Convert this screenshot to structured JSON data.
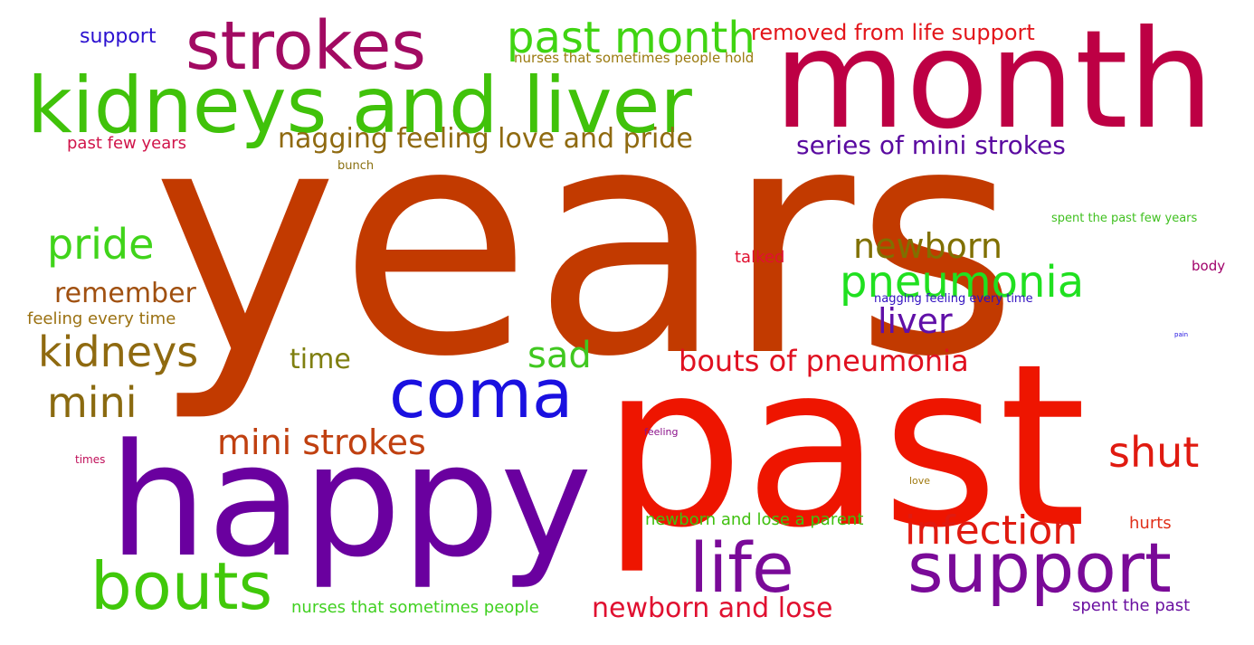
{
  "words": {
    "years": {
      "text": "years",
      "color": "#c23a00"
    },
    "month": {
      "text": "month",
      "color": "#bd0044"
    },
    "happy": {
      "text": "happy",
      "color": "#6a009f"
    },
    "past": {
      "text": "past",
      "color": "#ee1500"
    },
    "kidneys_and_liver": {
      "text": "kidneys and liver",
      "color": "#40c20a"
    },
    "strokes": {
      "text": "strokes",
      "color": "#a20a62"
    },
    "past_month": {
      "text": "past month",
      "color": "#40d412"
    },
    "removed_from_life_support": {
      "text": "removed from life support",
      "color": "#e3161b"
    },
    "support": {
      "text": "support",
      "color": "#2b10d0"
    },
    "nurses_that_sometimes_people_hold": {
      "text": "nurses that sometimes people hold",
      "color": "#9a7a10"
    },
    "past_few_years": {
      "text": "past few years",
      "color": "#d0144a"
    },
    "nagging_feeling_love_and_pride": {
      "text": "nagging feeling love and pride",
      "color": "#8f6a10"
    },
    "series_of_mini_strokes": {
      "text": "series of mini strokes",
      "color": "#5a0aa0"
    },
    "bunch": {
      "text": "bunch",
      "color": "#8a7010"
    },
    "spent_the_past_few_years": {
      "text": "spent the past few years",
      "color": "#40c020"
    },
    "pride": {
      "text": "pride",
      "color": "#40d41a"
    },
    "newborn": {
      "text": "newborn",
      "color": "#807000"
    },
    "talked": {
      "text": "talked",
      "color": "#e01030"
    },
    "body": {
      "text": "body",
      "color": "#a0006a"
    },
    "pneumonia": {
      "text": "pneumonia",
      "color": "#20e020"
    },
    "remember": {
      "text": "remember",
      "color": "#a05010"
    },
    "nagging_feeling_every_time": {
      "text": "nagging feeling every time",
      "color": "#3010c0"
    },
    "liver": {
      "text": "liver",
      "color": "#6010a8"
    },
    "feeling_every_time": {
      "text": "feeling every time",
      "color": "#9a7010"
    },
    "pain": {
      "text": "pain",
      "color": "#2010e0"
    },
    "kidneys": {
      "text": "kidneys",
      "color": "#8f6a10"
    },
    "time": {
      "text": "time",
      "color": "#7f7f10"
    },
    "sad": {
      "text": "sad",
      "color": "#40c820"
    },
    "bouts_of_pneumonia": {
      "text": "bouts of pneumonia",
      "color": "#e01020"
    },
    "coma": {
      "text": "coma",
      "color": "#1a10e0"
    },
    "mini": {
      "text": "mini",
      "color": "#8a6a10"
    },
    "mini_strokes": {
      "text": "mini strokes",
      "color": "#c04010"
    },
    "shut": {
      "text": "shut",
      "color": "#e01a10"
    },
    "feeling": {
      "text": "feeling",
      "color": "#8a108a"
    },
    "times": {
      "text": "times",
      "color": "#c0105a"
    },
    "love": {
      "text": "love",
      "color": "#a07a10"
    },
    "newborn_and_lose_a_parent": {
      "text": "newborn and lose a parent",
      "color": "#40c010"
    },
    "infection": {
      "text": "infection",
      "color": "#e01a10"
    },
    "hurts": {
      "text": "hurts",
      "color": "#e0301a"
    },
    "bouts": {
      "text": "bouts",
      "color": "#40c80a"
    },
    "life_support_small": {
      "text": "life support",
      "color": "#7a0a98"
    },
    "life": {
      "text": "life",
      "color": "#7a0a98"
    },
    "nurses_that_sometimes_people": {
      "text": "nurses that sometimes people",
      "color": "#40d020"
    },
    "newborn_and_lose": {
      "text": "newborn and lose",
      "color": "#e01030"
    },
    "spent_the_past": {
      "text": "spent the past",
      "color": "#6a10a0"
    }
  }
}
